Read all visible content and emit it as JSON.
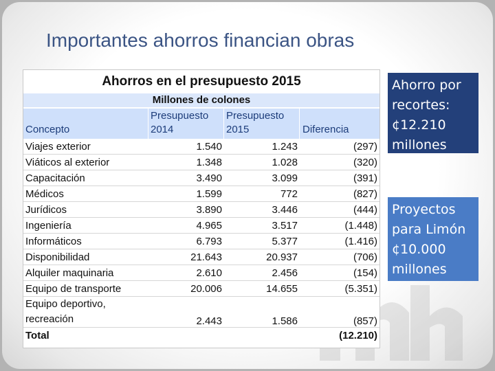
{
  "slide": {
    "title": "Importantes ahorros financian obras"
  },
  "table": {
    "heading": "Ahorros en el presupuesto 2015",
    "subheading": "Millones de colones",
    "columns": {
      "concept": "Concepto",
      "budget_2014": "Presupuesto 2014",
      "budget_2015": "Presupuesto 2015",
      "difference": "Diferencia"
    },
    "column_lines": {
      "budget_2014_top": "Presupuesto",
      "budget_2014_bottom": "2014",
      "budget_2015_top": "Presupuesto",
      "budget_2015_bottom": "2015"
    },
    "rows": [
      {
        "concept": "Viajes exterior",
        "p2014": "1.540",
        "p2015": "1.243",
        "diff": "(297)"
      },
      {
        "concept": "Viáticos al exterior",
        "p2014": "1.348",
        "p2015": "1.028",
        "diff": "(320)"
      },
      {
        "concept": "Capacitación",
        "p2014": "3.490",
        "p2015": "3.099",
        "diff": "(391)"
      },
      {
        "concept": "Médicos",
        "p2014": "1.599",
        "p2015": "772",
        "diff": "(827)"
      },
      {
        "concept": "Jurídicos",
        "p2014": "3.890",
        "p2015": "3.446",
        "diff": "(444)"
      },
      {
        "concept": "Ingeniería",
        "p2014": "4.965",
        "p2015": "3.517",
        "diff": "(1.448)"
      },
      {
        "concept": "Informáticos",
        "p2014": "6.793",
        "p2015": "5.377",
        "diff": "(1.416)"
      },
      {
        "concept": "Disponibilidad",
        "p2014": "21.643",
        "p2015": "20.937",
        "diff": "(706)"
      },
      {
        "concept": "Alquiler maquinaria",
        "p2014": "2.610",
        "p2015": "2.456",
        "diff": "(154)"
      },
      {
        "concept": "Equipo de transporte",
        "p2014": "20.006",
        "p2015": "14.655",
        "diff": "(5.351)"
      },
      {
        "concept": "Equipo deportivo, recreación",
        "p2014": "2.443",
        "p2015": "1.586",
        "diff": "(857)"
      }
    ],
    "total": {
      "label": "Total",
      "diff": "(12.210)"
    }
  },
  "callouts": {
    "savings": "Ahorro por recortes: ¢12.210 millones",
    "projects": "Proyectos para Limón ¢10.000 millones"
  },
  "watermark": {
    "text": "mh"
  },
  "colors": {
    "title": "#3b5484",
    "header_fill": "#cfe0fb",
    "callout_dark": "#23407a",
    "callout_light": "#4a7cc6"
  }
}
